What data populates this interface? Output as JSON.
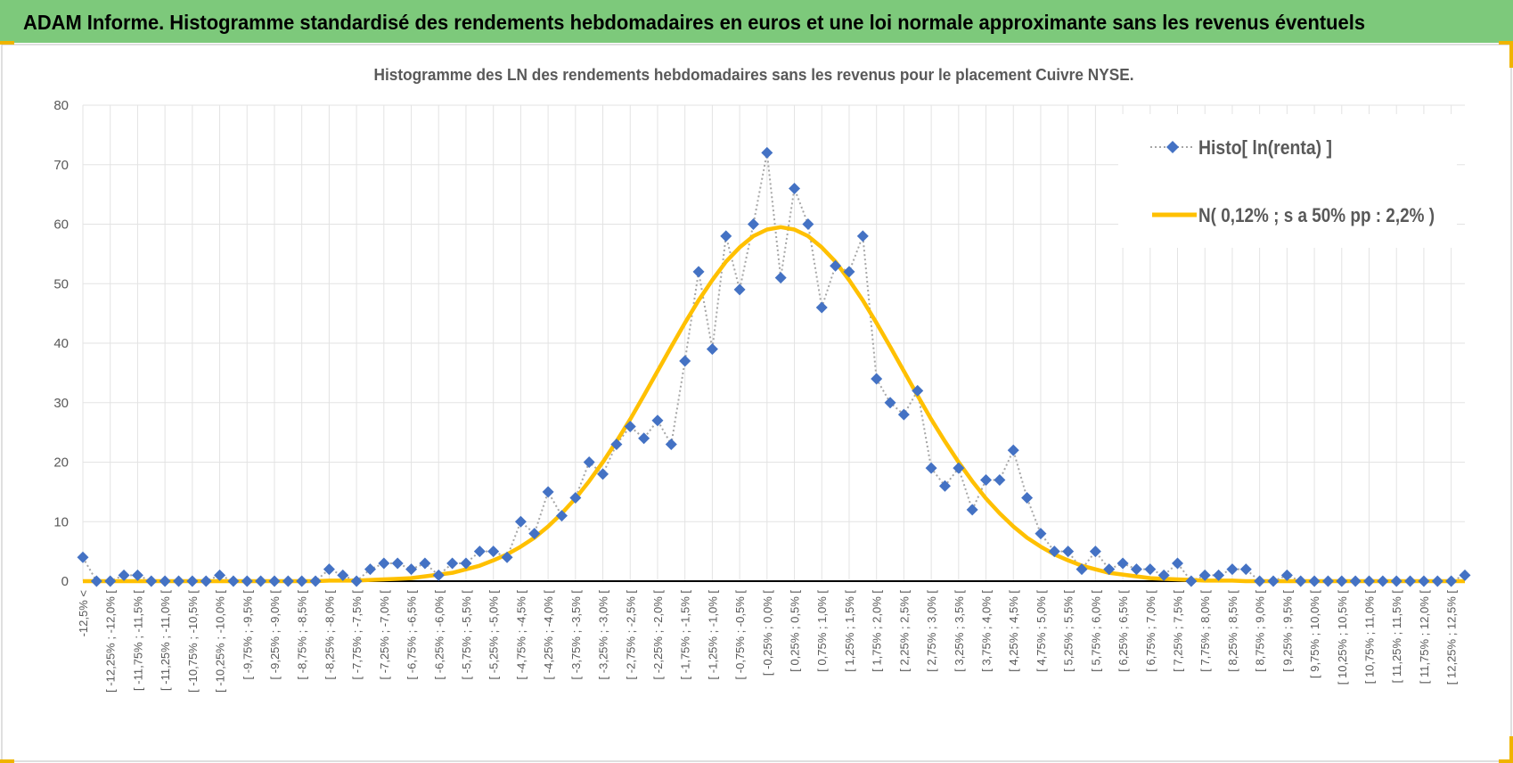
{
  "header": {
    "title": "ADAM Informe. Histogramme standardisé des rendements hebdomadaires en euros et une loi normale approximante sans les revenus éventuels"
  },
  "chart_data": {
    "type": "line",
    "title": "Histogramme des LN des rendements hebdomadaires sans les revenus pour le placement Cuivre NYSE.",
    "legend": "upper right",
    "grid": true,
    "ylim": [
      0,
      80
    ],
    "yticks": [
      0,
      10,
      20,
      30,
      40,
      50,
      60,
      70,
      80
    ],
    "categories": [
      "-12,5% <",
      null,
      "[ -12,25% ; -12,0% [",
      null,
      "[ -11,75% ; -11,5% [",
      null,
      "[ -11,25% ; -11,0% [",
      null,
      "[ -10,75% ; -10,5% [",
      null,
      "[ -10,25% ; -10,0% [",
      null,
      "[ -9,75% ; -9,5% [",
      null,
      "[ -9,25% ; -9,0% [",
      null,
      "[ -8,75% ; -8,5% [",
      null,
      "[ -8,25% ; -8,0% [",
      null,
      "[ -7,75% ; -7,5% [",
      null,
      "[ -7,25% ; -7,0% [",
      null,
      "[ -6,75% ; -6,5% [",
      null,
      "[ -6,25% ; -6,0% [",
      null,
      "[ -5,75% ; -5,5% [",
      null,
      "[ -5,25% ; -5,0% [",
      null,
      "[ -4,75% ; -4,5% [",
      null,
      "[ -4,25% ; -4,0% [",
      null,
      "[ -3,75% ; -3,5% [",
      null,
      "[ -3,25% ; -3,0% [",
      null,
      "[ -2,75% ; -2,5% [",
      null,
      "[ -2,25% ; -2,0% [",
      null,
      "[ -1,75% ; -1,5% [",
      null,
      "[ -1,25% ; -1,0% [",
      null,
      "[ -0,75% ; -0,5% [",
      null,
      "[ -0,25% ; 0,0% [",
      null,
      "[ 0,25% ; 0,5% [",
      null,
      "[ 0,75% ; 1,0% [",
      null,
      "[ 1,25% ; 1,5% [",
      null,
      "[ 1,75% ; 2,0% [",
      null,
      "[ 2,25% ; 2,5% [",
      null,
      "[ 2,75% ; 3,0% [",
      null,
      "[ 3,25% ; 3,5% [",
      null,
      "[ 3,75% ; 4,0% [",
      null,
      "[ 4,25% ; 4,5% [",
      null,
      "[ 4,75% ; 5,0% [",
      null,
      "[ 5,25% ; 5,5% [",
      null,
      "[ 5,75% ; 6,0% [",
      null,
      "[ 6,25% ; 6,5% [",
      null,
      "[ 6,75% ; 7,0% [",
      null,
      "[ 7,25% ; 7,5% [",
      null,
      "[ 7,75% ; 8,0% [",
      null,
      "[ 8,25% ; 8,5% [",
      null,
      "[ 8,75% ; 9,0% [",
      null,
      "[ 9,25% ; 9,5% [",
      null,
      "[ 9,75% ; 10,0% [",
      null,
      "[ 10,25% ; 10,5% [",
      null,
      "[ 10,75% ; 11,0% [",
      null,
      "[ 11,25% ; 11,5% [",
      null,
      "[ 11,75% ; 12,0% [",
      null,
      "[ 12,25% ; 12,5% [",
      null
    ],
    "series": [
      {
        "name": "Histo[ ln(renta) ]",
        "color": "#4472c4",
        "line_color": "#a6a6a6",
        "values": [
          4,
          0,
          0,
          1,
          1,
          0,
          0,
          0,
          0,
          0,
          1,
          0,
          0,
          0,
          0,
          0,
          0,
          0,
          2,
          1,
          0,
          2,
          3,
          3,
          2,
          3,
          1,
          3,
          3,
          5,
          5,
          4,
          10,
          8,
          15,
          11,
          14,
          20,
          18,
          23,
          26,
          24,
          27,
          23,
          37,
          52,
          39,
          58,
          49,
          60,
          72,
          51,
          66,
          60,
          46,
          53,
          52,
          58,
          34,
          30,
          28,
          32,
          19,
          16,
          19,
          12,
          17,
          17,
          22,
          14,
          8,
          5,
          5,
          2,
          5,
          2,
          3,
          2,
          2,
          1,
          3,
          0,
          1,
          1,
          2,
          2,
          0,
          0,
          1,
          0,
          0,
          0,
          0,
          0,
          0,
          0,
          0,
          0,
          0,
          0,
          0,
          1
        ]
      },
      {
        "name": "N( 0,12% ; s a 50% pp : 2,2% )",
        "color": "#ffc000",
        "values": [
          0,
          0,
          0,
          0,
          0,
          0,
          0,
          0,
          0,
          0,
          0,
          0,
          0,
          0,
          0,
          0,
          0,
          0,
          0.1,
          0.1,
          0.1,
          0.2,
          0.3,
          0.4,
          0.5,
          0.8,
          1.1,
          1.4,
          2.0,
          2.6,
          3.5,
          4.5,
          5.8,
          7.3,
          9.2,
          11.4,
          13.9,
          16.8,
          20.0,
          23.5,
          27.2,
          31.2,
          35.3,
          39.4,
          43.4,
          47.2,
          50.6,
          53.7,
          56.1,
          58.0,
          59.1,
          59.5,
          59.1,
          58.0,
          56.1,
          53.7,
          50.6,
          47.2,
          43.4,
          39.4,
          35.3,
          31.2,
          27.2,
          23.5,
          20.0,
          16.8,
          13.9,
          11.4,
          9.2,
          7.3,
          5.8,
          4.5,
          3.5,
          2.6,
          2.0,
          1.4,
          1.1,
          0.8,
          0.5,
          0.4,
          0.3,
          0.2,
          0.1,
          0.1,
          0.1,
          0,
          0,
          0,
          0,
          0,
          0,
          0,
          0,
          0,
          0,
          0,
          0,
          0,
          0,
          0,
          0,
          0
        ]
      }
    ]
  }
}
